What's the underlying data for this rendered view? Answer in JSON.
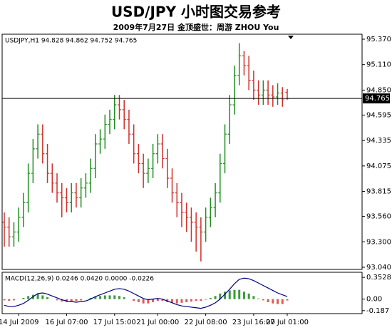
{
  "chart_data": {
    "type": "ohlc",
    "title": "USD/JPY  小时图交易参考",
    "subtitle": "2009年7月27日   金顶盛世：周游 ZHOU You",
    "info": "USDJPY,H1  94.828 94.862 94.752 94.765",
    "categories": [
      null,
      null,
      null,
      "14 Jul 2009",
      null,
      null,
      null,
      null,
      null,
      null,
      null,
      null,
      null,
      "16 Jul 07:00",
      null,
      null,
      null,
      null,
      null,
      null,
      null,
      null,
      null,
      "17 Jul 15:00",
      null,
      null,
      null,
      null,
      null,
      null,
      null,
      null,
      "21 Jul 00:00",
      null,
      null,
      null,
      null,
      null,
      null,
      null,
      null,
      null,
      "22 Jul 08:00",
      null,
      null,
      null,
      null,
      null,
      null,
      null,
      null,
      null,
      "23 Jul 16:00",
      null,
      null,
      null,
      null,
      null,
      null,
      "27 Jul 01:00"
    ],
    "open": [
      93.5,
      93.45,
      93.35,
      93.4,
      93.55,
      93.7,
      94.0,
      94.25,
      94.4,
      94.2,
      94.0,
      93.9,
      93.8,
      93.75,
      93.7,
      93.8,
      93.75,
      93.85,
      93.9,
      94.05,
      94.3,
      94.35,
      94.5,
      94.55,
      94.7,
      94.65,
      94.55,
      94.4,
      94.2,
      94.1,
      94.0,
      94.05,
      94.2,
      94.3,
      94.15,
      93.95,
      93.8,
      93.7,
      93.6,
      93.55,
      93.5,
      93.45,
      93.4,
      93.55,
      93.65,
      93.8,
      94.1,
      94.4,
      94.7,
      95.0,
      95.2,
      95.1,
      94.95,
      94.85,
      94.8,
      94.85,
      94.8,
      94.78,
      94.82,
      94.828
    ],
    "high": [
      93.6,
      93.55,
      93.5,
      93.65,
      93.8,
      94.1,
      94.35,
      94.5,
      94.5,
      94.3,
      94.1,
      94.0,
      93.9,
      93.85,
      93.9,
      93.9,
      93.95,
      94.0,
      94.15,
      94.4,
      94.45,
      94.6,
      94.65,
      94.8,
      94.8,
      94.75,
      94.65,
      94.5,
      94.3,
      94.2,
      94.15,
      94.3,
      94.4,
      94.4,
      94.25,
      94.05,
      93.9,
      93.8,
      93.7,
      93.65,
      93.6,
      93.55,
      93.65,
      93.75,
      93.9,
      94.2,
      94.5,
      94.8,
      95.1,
      95.33,
      95.25,
      95.2,
      95.05,
      94.95,
      94.95,
      94.95,
      94.9,
      94.92,
      94.88,
      94.862
    ],
    "low": [
      93.25,
      93.25,
      93.25,
      93.3,
      93.45,
      93.6,
      93.9,
      94.15,
      94.1,
      93.9,
      93.8,
      93.7,
      93.55,
      93.6,
      93.6,
      93.65,
      93.65,
      93.75,
      93.8,
      93.95,
      94.2,
      94.25,
      94.4,
      94.45,
      94.55,
      94.45,
      94.3,
      94.1,
      94.0,
      93.85,
      93.9,
      93.95,
      94.1,
      94.05,
      93.85,
      93.7,
      93.55,
      93.45,
      93.4,
      93.3,
      93.2,
      93.1,
      93.3,
      93.45,
      93.55,
      93.7,
      94.0,
      94.3,
      94.6,
      94.9,
      95.0,
      94.85,
      94.75,
      94.7,
      94.7,
      94.7,
      94.68,
      94.7,
      94.68,
      94.752
    ],
    "close": [
      93.45,
      93.35,
      93.4,
      93.55,
      93.7,
      94.0,
      94.25,
      94.4,
      94.2,
      94.0,
      93.9,
      93.8,
      93.75,
      93.7,
      93.8,
      93.75,
      93.85,
      93.9,
      94.05,
      94.3,
      94.35,
      94.5,
      94.55,
      94.7,
      94.65,
      94.55,
      94.4,
      94.2,
      94.1,
      94.0,
      94.05,
      94.2,
      94.3,
      94.15,
      93.95,
      93.8,
      93.7,
      93.6,
      93.55,
      93.5,
      93.45,
      93.4,
      93.55,
      93.65,
      93.8,
      94.1,
      94.4,
      94.7,
      95.0,
      95.2,
      95.1,
      94.95,
      94.85,
      94.8,
      94.85,
      94.8,
      94.78,
      94.82,
      94.75,
      94.765
    ],
    "up_color": "#1f8f1f",
    "down_color": "#d0302a",
    "current_price": 94.765,
    "ylim": [
      93.018,
      95.421
    ],
    "yticks": [
      {
        "value": 95.37,
        "label": "95.370"
      },
      {
        "value": 95.11,
        "label": "95.110"
      },
      {
        "value": 94.85,
        "label": "94.850"
      },
      94.595,
      94.335,
      94.075,
      93.815,
      {
        "value": 93.56,
        "label": "93.560"
      },
      {
        "value": 93.3,
        "label": "93.300"
      },
      {
        "value": 93.04,
        "label": "93.040"
      }
    ],
    "macd": {
      "label": "MACD(12,26,9) 0.0246 0.0420 0.0000 -0.0226",
      "ylim": [
        -0.235,
        0.435
      ],
      "yticks": [
        0.3528,
        {
          "value": 0,
          "label": "0.00"
        },
        -0.187
      ],
      "histogram": [
        -0.02,
        -0.03,
        -0.02,
        0.0,
        0.02,
        0.05,
        0.07,
        0.08,
        0.06,
        0.03,
        0.0,
        -0.02,
        -0.04,
        -0.05,
        -0.04,
        -0.03,
        -0.02,
        0.0,
        0.02,
        0.04,
        0.05,
        0.06,
        0.06,
        0.06,
        0.05,
        0.03,
        0.0,
        -0.03,
        -0.05,
        -0.07,
        -0.07,
        -0.05,
        -0.03,
        -0.03,
        -0.05,
        -0.06,
        -0.07,
        -0.06,
        -0.05,
        -0.04,
        -0.03,
        -0.03,
        -0.01,
        0.02,
        0.05,
        0.09,
        0.12,
        0.14,
        0.15,
        0.15,
        0.12,
        0.09,
        0.05,
        0.01,
        -0.02,
        -0.05,
        -0.07,
        -0.08,
        -0.08,
        -0.0226
      ],
      "line": [
        -0.1,
        -0.12,
        -0.12,
        -0.1,
        -0.07,
        -0.02,
        0.04,
        0.09,
        0.1,
        0.08,
        0.05,
        0.02,
        -0.01,
        -0.03,
        -0.04,
        -0.05,
        -0.04,
        -0.03,
        0.0,
        0.04,
        0.07,
        0.1,
        0.13,
        0.16,
        0.17,
        0.16,
        0.13,
        0.09,
        0.05,
        0.01,
        -0.01,
        0.0,
        0.01,
        0.0,
        -0.03,
        -0.06,
        -0.09,
        -0.11,
        -0.12,
        -0.13,
        -0.14,
        -0.15,
        -0.13,
        -0.1,
        -0.06,
        0.0,
        0.08,
        0.16,
        0.25,
        0.32,
        0.34,
        0.33,
        0.3,
        0.26,
        0.22,
        0.18,
        0.14,
        0.1,
        0.07,
        0.042
      ],
      "line_color": "#000080",
      "up_color": "#3a9a3a",
      "down_color": "#e05a5a"
    }
  }
}
